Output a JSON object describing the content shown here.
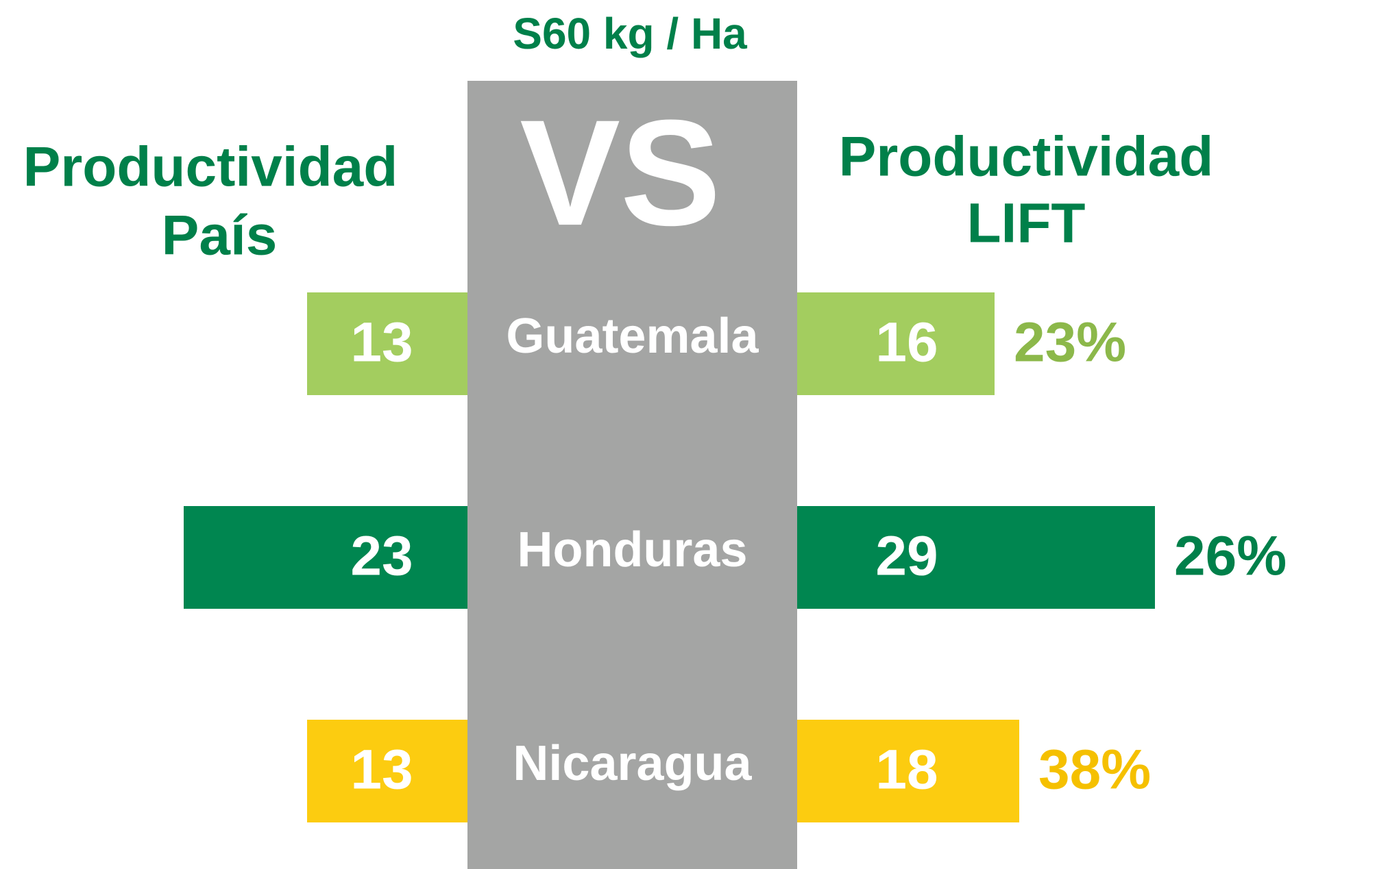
{
  "chart_data": {
    "type": "bar",
    "title": "S60 kg / Ha",
    "center_label": "VS",
    "left_heading": [
      "Productividad",
      "País"
    ],
    "right_heading": [
      "Productividad",
      "LIFT"
    ],
    "categories": [
      "Guatemala",
      "Honduras",
      "Nicaragua"
    ],
    "colors": [
      "#a3cd5f",
      "#008650",
      "#fccc10"
    ],
    "label_colors": [
      "#8cb84a",
      "#00804a",
      "#f5c000"
    ],
    "series": [
      {
        "name": "Productividad País",
        "values": [
          13,
          23,
          13
        ]
      },
      {
        "name": "Productividad LIFT",
        "values": [
          16,
          29,
          18
        ]
      }
    ],
    "increase": {
      "values": [
        23,
        26,
        38
      ],
      "value_labels": [
        "23%",
        "26%",
        "38%"
      ]
    }
  }
}
